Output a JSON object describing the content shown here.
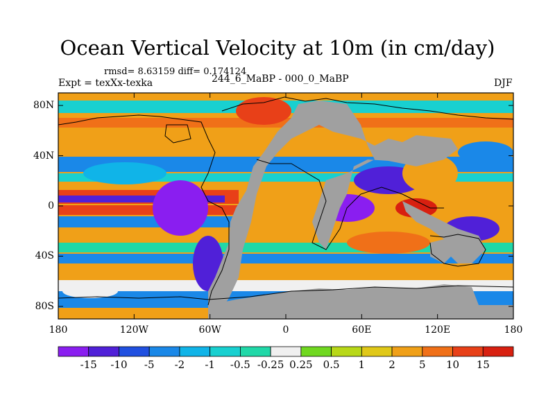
{
  "title": "Ocean Vertical Velocity at 10m (in cm/day)",
  "stats_text": "rmsd= 8.63159 diff= 0.174124",
  "experiment_text": "Expt = texXx-texka",
  "comparison_text": "244_6_MaBP - 000_0_MaBP",
  "season_text": "DJF",
  "map": {
    "projection": "cylindrical equidistant",
    "lon_range": [
      -180,
      180
    ],
    "lat_range": [
      -90,
      90
    ],
    "lon_ticks": [
      "180",
      "120W",
      "60W",
      "0",
      "60E",
      "120E",
      "180"
    ],
    "lat_ticks": [
      "80N",
      "40N",
      "0",
      "40S",
      "80S"
    ],
    "land_color": "#a0a0a0"
  },
  "colorbar": {
    "labels": [
      "-15",
      "-10",
      "-5",
      "-2",
      "-1",
      "-0.5",
      "-0.25",
      "0.25",
      "0.5",
      "1",
      "2",
      "5",
      "10",
      "15"
    ],
    "colors": [
      "#8a1ef0",
      "#5020d8",
      "#2050e0",
      "#1a88e8",
      "#10b4e8",
      "#18d0d0",
      "#20d8a8",
      "#f0f0f0",
      "#70d820",
      "#b8d818",
      "#e0c818",
      "#f0a018",
      "#f07018",
      "#e84018",
      "#d82010"
    ]
  }
}
